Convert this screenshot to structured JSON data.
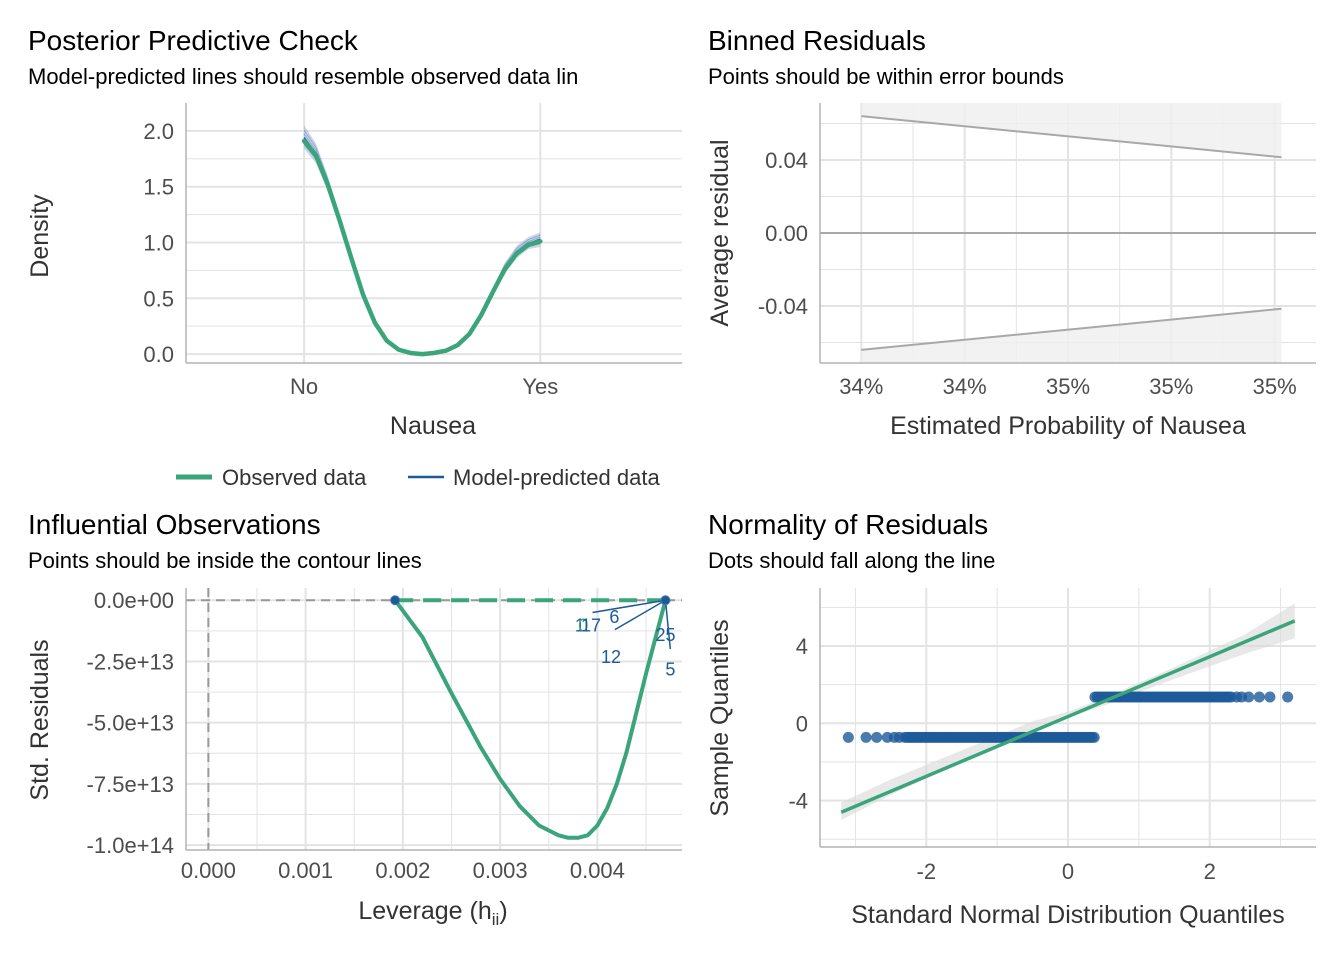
{
  "colors": {
    "observed": "#3aa47a",
    "predicted": "#1d5a9a",
    "predicted_band": "#8fa5d4",
    "grid": "#e3e3e3",
    "axis": "#b3b3b3",
    "bounds": "#a8a8a8",
    "ribbon": "#d9d9d9",
    "ref_dash": "#999999"
  },
  "chart_data": [
    {
      "id": "ppc",
      "type": "line",
      "title": "Posterior Predictive Check",
      "subtitle": "Model-predicted lines should resemble observed data lin",
      "xlabel": "Nausea",
      "ylabel": "Density",
      "categories": [
        "No",
        "Yes"
      ],
      "x_range": [
        0.5,
        2.6
      ],
      "ylim": [
        -0.08,
        2.25
      ],
      "yticks": [
        0.0,
        0.5,
        1.0,
        1.5,
        2.0
      ],
      "ytick_labels": [
        "0.0",
        "0.5",
        "1.0",
        "1.5",
        "2.0"
      ],
      "series": [
        {
          "name": "Observed data",
          "x": [
            1.0,
            1.05,
            1.1,
            1.15,
            1.2,
            1.25,
            1.3,
            1.35,
            1.4,
            1.45,
            1.5,
            1.55,
            1.6,
            1.65,
            1.7,
            1.75,
            1.8,
            1.85,
            1.9,
            1.95,
            2.0
          ],
          "y": [
            1.91,
            1.78,
            1.52,
            1.2,
            0.86,
            0.53,
            0.28,
            0.12,
            0.04,
            0.01,
            0.0,
            0.01,
            0.03,
            0.08,
            0.18,
            0.35,
            0.56,
            0.76,
            0.9,
            0.98,
            1.01
          ]
        },
        {
          "name": "Model-predicted data",
          "x": [
            1.0,
            1.05,
            1.1,
            1.15,
            1.2,
            1.25,
            1.3,
            1.35,
            1.4,
            1.45,
            1.5,
            1.55,
            1.6,
            1.65,
            1.7,
            1.75,
            1.8,
            1.85,
            1.9,
            1.95,
            2.0
          ],
          "y": [
            1.94,
            1.8,
            1.53,
            1.2,
            0.86,
            0.53,
            0.28,
            0.12,
            0.04,
            0.01,
            0.0,
            0.01,
            0.03,
            0.08,
            0.18,
            0.35,
            0.56,
            0.77,
            0.91,
            0.99,
            1.03
          ],
          "band_low": [
            1.84,
            1.71,
            1.46,
            1.15,
            0.82,
            0.51,
            0.27,
            0.11,
            0.04,
            0.01,
            0.0,
            0.01,
            0.03,
            0.07,
            0.17,
            0.33,
            0.53,
            0.72,
            0.86,
            0.94,
            0.96
          ],
          "band_high": [
            2.05,
            1.89,
            1.6,
            1.25,
            0.9,
            0.56,
            0.3,
            0.13,
            0.05,
            0.01,
            0.0,
            0.01,
            0.03,
            0.09,
            0.19,
            0.37,
            0.6,
            0.82,
            0.97,
            1.05,
            1.09
          ]
        }
      ],
      "legend_position": "bottom"
    },
    {
      "id": "binned",
      "type": "line",
      "title": "Binned Residuals",
      "subtitle": "Points should be within error bounds",
      "xlabel": "Estimated Probability of Nausea",
      "ylabel": "Average residual",
      "xlim": [
        0.3414,
        0.3486
      ],
      "ylim": [
        -0.0712,
        0.0712
      ],
      "xticks": [
        0.342,
        0.3435,
        0.345,
        0.3465,
        0.348
      ],
      "xtick_labels": [
        "34%",
        "34%",
        "35%",
        "35%",
        "35%"
      ],
      "yticks": [
        -0.04,
        0.0,
        0.04
      ],
      "ytick_labels": [
        "-0.04",
        "0.00",
        "0.04"
      ],
      "upper_bound": {
        "x": [
          0.342,
          0.3481
        ],
        "y": [
          0.064,
          0.0415
        ]
      },
      "lower_bound": {
        "x": [
          0.342,
          0.3481
        ],
        "y": [
          -0.064,
          -0.0415
        ]
      },
      "zero_line": 0.0
    },
    {
      "id": "influential",
      "type": "scatter",
      "title": "Influential Observations",
      "subtitle": "Points should be inside the contour lines",
      "xlabel": "Leverage (h",
      "xlabel_sub": "ii",
      "xlabel_close": ")",
      "ylabel": "Std. Residuals",
      "xlim": [
        -0.00023,
        0.00487
      ],
      "ylim": [
        -102000000000000.0,
        5000000000000.0
      ],
      "xticks": [
        0.0,
        0.001,
        0.002,
        0.003,
        0.004
      ],
      "xtick_labels": [
        "0.000",
        "0.001",
        "0.002",
        "0.003",
        "0.004"
      ],
      "yticks": [
        0,
        -25000000000000.0,
        -50000000000000.0,
        -75000000000000.0,
        -100000000000000.0
      ],
      "ytick_labels": [
        "0.0e+00",
        "-2.5e+13",
        "-5.0e+13",
        "-7.5e+13",
        "-1.0e+14"
      ],
      "contour": {
        "x": [
          0.00192,
          0.0022,
          0.0025,
          0.0028,
          0.003,
          0.0032,
          0.0034,
          0.0036,
          0.0037,
          0.0038,
          0.0039,
          0.004,
          0.0041,
          0.0042,
          0.0043,
          0.0044,
          0.0045,
          0.0046,
          0.0047
        ],
        "y": [
          0,
          -15000000000000.0,
          -38000000000000.0,
          -60000000000000.0,
          -73000000000000.0,
          -84000000000000.0,
          -92000000000000.0,
          -96000000000000.0,
          -97000000000000.0,
          -97000000000000.0,
          -96000000000000.0,
          -92000000000000.0,
          -85000000000000.0,
          -75000000000000.0,
          -62000000000000.0,
          -46000000000000.0,
          -30000000000000.0,
          -15000000000000.0,
          0
        ]
      },
      "dashed_fit": {
        "x": [
          0.00192,
          0.0047
        ],
        "y": [
          0,
          0
        ]
      },
      "vline": 0.0,
      "points": [
        {
          "x": 0.00192,
          "y": 0
        },
        {
          "x": 0.0047,
          "y": 0
        }
      ],
      "labels": [
        {
          "text": "1",
          "x": 0.00382,
          "y": -7000000000000.0,
          "color": "predicted"
        },
        {
          "text": "0",
          "x": 0.003855,
          "y": -7000000000000.0,
          "color": "observed"
        },
        {
          "text": "17",
          "x": 0.003935,
          "y": -7000000000000.0,
          "color": "predicted"
        },
        {
          "text": "6",
          "x": 0.004175,
          "y": -3500000000000.0,
          "color": "predicted"
        },
        {
          "text": "12",
          "x": 0.00414,
          "y": -20000000000000.0,
          "color": "predicted"
        },
        {
          "text": "25",
          "x": 0.0047,
          "y": -11000000000000.0,
          "color": "predicted"
        },
        {
          "text": "5",
          "x": 0.00475,
          "y": -25000000000000.0,
          "color": "predicted"
        }
      ],
      "label_lines": [
        {
          "x1": 0.00395,
          "y1": -5000000000000.0,
          "x2": 0.0047,
          "y2": 0
        },
        {
          "x1": 0.00418,
          "y1": -12000000000000.0,
          "x2": 0.0047,
          "y2": 0
        },
        {
          "x1": 0.00475,
          "y1": -20000000000000.0,
          "x2": 0.0047,
          "y2": 0
        }
      ]
    },
    {
      "id": "qq",
      "type": "scatter",
      "title": "Normality of Residuals",
      "subtitle": "Dots should fall along the line",
      "xlabel": "Standard Normal Distribution Quantiles",
      "ylabel": "Sample Quantiles",
      "xlim": [
        -3.5,
        3.5
      ],
      "ylim": [
        -6.4,
        7.0
      ],
      "xticks": [
        -2,
        0,
        2
      ],
      "xtick_labels": [
        "-2",
        "0",
        "2"
      ],
      "yticks": [
        -4,
        0,
        4
      ],
      "ytick_labels": [
        "-4",
        "0",
        "4"
      ],
      "fit_line": {
        "x": [
          -3.2,
          3.2
        ],
        "y": [
          -4.6,
          5.3
        ]
      },
      "ribbon": {
        "x": [
          -3.2,
          -2.5,
          -1.5,
          -0.5,
          0.0,
          0.5,
          1.5,
          2.5,
          3.2
        ],
        "low": [
          -5.0,
          -3.7,
          -2.0,
          -0.5,
          0.3,
          0.9,
          2.3,
          3.6,
          4.4
        ],
        "high": [
          -4.1,
          -2.9,
          -1.4,
          0.1,
          0.6,
          1.3,
          2.9,
          4.6,
          6.2
        ]
      },
      "low_group": {
        "x_from": -3.1,
        "x_to": 0.38,
        "y": -0.73,
        "dense_from": -2.3,
        "sparse": [
          -3.1,
          -2.85,
          -2.7,
          -2.55,
          -2.45,
          -2.38
        ]
      },
      "high_group": {
        "x_from": 0.38,
        "x_to": 3.1,
        "y": 1.36,
        "dense_to": 2.3,
        "sparse": [
          2.38,
          2.45,
          2.55,
          2.7,
          2.85,
          3.1
        ]
      }
    }
  ]
}
